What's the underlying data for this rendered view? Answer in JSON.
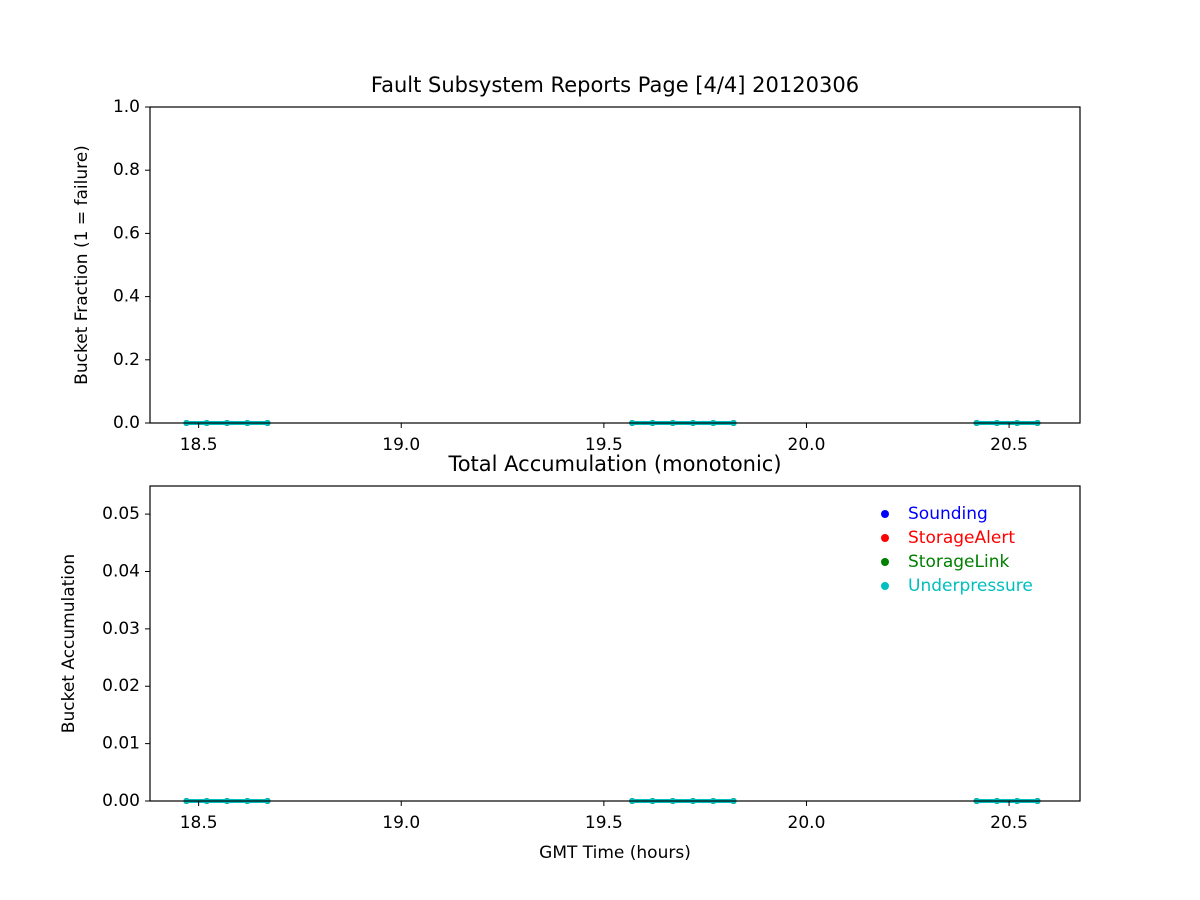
{
  "chart_data": [
    {
      "type": "line",
      "title": "Fault Subsystem Reports Page [4/4] 20120306",
      "ylabel": "Bucket Fraction (1 = failure)",
      "xlim": [
        18.38,
        20.675
      ],
      "xticks": [
        18.5,
        {
          "value": 19.0,
          "label": "19.0"
        },
        19.5,
        {
          "value": 20.0,
          "label": "20.0"
        },
        20.5
      ],
      "ylim": [
        0,
        1
      ],
      "yticks": [
        {
          "value": 0,
          "label": "0.0"
        },
        0.2,
        0.4,
        0.6,
        0.8,
        {
          "value": 1,
          "label": "1.0"
        }
      ],
      "series": [
        {
          "color": "#0000ff",
          "x": [
            18.47,
            18.52,
            18.57,
            18.62,
            18.67,
            null,
            19.57,
            19.62,
            19.67,
            19.72,
            19.77,
            19.82,
            null,
            20.42,
            20.47,
            20.52,
            20.57
          ],
          "values": [
            0,
            0,
            0,
            0,
            0,
            null,
            0,
            0,
            0,
            0,
            0,
            0,
            null,
            0,
            0,
            0,
            0
          ]
        },
        {
          "color": "#ff0000",
          "x": [
            18.47,
            18.52,
            18.57,
            18.62,
            18.67,
            null,
            19.57,
            19.62,
            19.67,
            19.72,
            19.77,
            19.82,
            null,
            20.42,
            20.47,
            20.52,
            20.57
          ],
          "values": [
            0,
            0,
            0,
            0,
            0,
            null,
            0,
            0,
            0,
            0,
            0,
            0,
            null,
            0,
            0,
            0,
            0
          ]
        },
        {
          "color": "#008000",
          "x": [
            18.47,
            18.52,
            18.57,
            18.62,
            18.67,
            null,
            19.57,
            19.62,
            19.67,
            19.72,
            19.77,
            19.82,
            null,
            20.42,
            20.47,
            20.52,
            20.57
          ],
          "values": [
            0,
            0,
            0,
            0,
            0,
            null,
            0,
            0,
            0,
            0,
            0,
            0,
            null,
            0,
            0,
            0,
            0
          ]
        },
        {
          "color": "#00bfbf",
          "x": [
            18.47,
            18.52,
            18.57,
            18.62,
            18.67,
            null,
            19.57,
            19.62,
            19.67,
            19.72,
            19.77,
            19.82,
            null,
            20.42,
            20.47,
            20.52,
            20.57
          ],
          "values": [
            0,
            0,
            0,
            0,
            0,
            null,
            0,
            0,
            0,
            0,
            0,
            0,
            null,
            0,
            0,
            0,
            0
          ]
        }
      ]
    },
    {
      "type": "line",
      "title": "Total Accumulation (monotonic)",
      "xlabel": "GMT Time (hours)",
      "ylabel": "Bucket Accumulation",
      "xlim": [
        18.38,
        20.675
      ],
      "xticks": [
        18.5,
        {
          "value": 19.0,
          "label": "19.0"
        },
        19.5,
        {
          "value": 20.0,
          "label": "20.0"
        },
        20.5
      ],
      "ylim": [
        0,
        0.0549
      ],
      "yticks": [
        {
          "value": 0,
          "label": "0.00"
        },
        {
          "value": 0.01,
          "label": "0.01"
        },
        {
          "value": 0.02,
          "label": "0.02"
        },
        {
          "value": 0.03,
          "label": "0.03"
        },
        {
          "value": 0.04,
          "label": "0.04"
        },
        {
          "value": 0.05,
          "label": "0.05"
        }
      ],
      "legend": "upper right",
      "series": [
        {
          "name": "Sounding",
          "color": "#0000ff",
          "x": [
            18.47,
            18.52,
            18.57,
            18.62,
            18.67,
            null,
            19.57,
            19.62,
            19.67,
            19.72,
            19.77,
            19.82,
            null,
            20.42,
            20.47,
            20.52,
            20.57
          ],
          "values": [
            0,
            0,
            0,
            0,
            0,
            null,
            0,
            0,
            0,
            0,
            0,
            0,
            null,
            0,
            0,
            0,
            0
          ]
        },
        {
          "name": "StorageAlert",
          "color": "#ff0000",
          "x": [
            18.47,
            18.52,
            18.57,
            18.62,
            18.67,
            null,
            19.57,
            19.62,
            19.67,
            19.72,
            19.77,
            19.82,
            null,
            20.42,
            20.47,
            20.52,
            20.57
          ],
          "values": [
            0,
            0,
            0,
            0,
            0,
            null,
            0,
            0,
            0,
            0,
            0,
            0,
            null,
            0,
            0,
            0,
            0
          ]
        },
        {
          "name": "StorageLink",
          "color": "#008000",
          "x": [
            18.47,
            18.52,
            18.57,
            18.62,
            18.67,
            null,
            19.57,
            19.62,
            19.67,
            19.72,
            19.77,
            19.82,
            null,
            20.42,
            20.47,
            20.52,
            20.57
          ],
          "values": [
            0,
            0,
            0,
            0,
            0,
            null,
            0,
            0,
            0,
            0,
            0,
            0,
            null,
            0,
            0,
            0,
            0
          ]
        },
        {
          "name": "Underpressure",
          "color": "#00bfbf",
          "x": [
            18.47,
            18.52,
            18.57,
            18.62,
            18.67,
            null,
            19.57,
            19.62,
            19.67,
            19.72,
            19.77,
            19.82,
            null,
            20.42,
            20.47,
            20.52,
            20.57
          ],
          "values": [
            0,
            0,
            0,
            0,
            0,
            null,
            0,
            0,
            0,
            0,
            0,
            0,
            null,
            0,
            0,
            0,
            0
          ]
        }
      ]
    }
  ]
}
